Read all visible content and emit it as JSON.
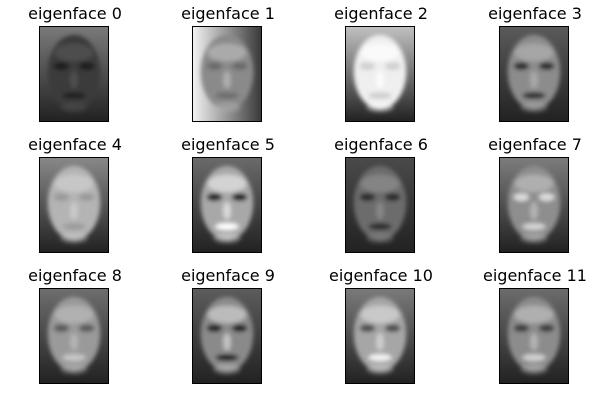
{
  "figure": {
    "panels": [
      {
        "title": "eigenface 0",
        "bg": "#7a7a7a",
        "face": "#3a3a3a",
        "eyes": "#1e1e1e",
        "mouth": "#202020",
        "hi": "#555555",
        "lighting": "dark"
      },
      {
        "title": "eigenface 1",
        "bg": "#9e9e9e",
        "face": "#8a8a8a",
        "eyes": "#6a6a6a",
        "mouth": "#6e6e6e",
        "hi": "#b8b8b8",
        "lighting": "gradient-left-dark"
      },
      {
        "title": "eigenface 2",
        "bg": "#c0c0c0",
        "face": "#efefef",
        "eyes": "#d0d0d0",
        "mouth": "#cfcfcf",
        "hi": "#ffffff",
        "lighting": "bright"
      },
      {
        "title": "eigenface 3",
        "bg": "#5a5a5a",
        "face": "#8c8c8c",
        "eyes": "#2c2c2c",
        "mouth": "#2e2e2e",
        "hi": "#b0b0b0",
        "lighting": "normal"
      },
      {
        "title": "eigenface 4",
        "bg": "#888888",
        "face": "#b4b4b4",
        "eyes": "#9a9a9a",
        "mouth": "#9c9c9c",
        "hi": "#cfcfcf",
        "lighting": "soft"
      },
      {
        "title": "eigenface 5",
        "bg": "#6a6a6a",
        "face": "#a8a8a8",
        "eyes": "#1a1a1a",
        "mouth": "#ffffff",
        "hi": "#e6e6e6",
        "lighting": "contrast"
      },
      {
        "title": "eigenface 6",
        "bg": "#4a4a4a",
        "face": "#6c6c6c",
        "eyes": "#2a2a2a",
        "mouth": "#2a2a2a",
        "hi": "#8e8e8e",
        "lighting": "dark"
      },
      {
        "title": "eigenface 7",
        "bg": "#7c7c7c",
        "face": "#8e8e8e",
        "eyes": "#dcdcdc",
        "mouth": "#d4d4d4",
        "hi": "#bdbdbd",
        "lighting": "inverse"
      },
      {
        "title": "eigenface 8",
        "bg": "#6e6e6e",
        "face": "#9a9a9a",
        "eyes": "#5a5a5a",
        "mouth": "#c8c8c8",
        "hi": "#bababa",
        "lighting": "normal"
      },
      {
        "title": "eigenface 9",
        "bg": "#5c5c5c",
        "face": "#8a8a8a",
        "eyes": "#222222",
        "mouth": "#1e1e1e",
        "hi": "#d0d0d0",
        "lighting": "contrast"
      },
      {
        "title": "eigenface 10",
        "bg": "#7a7a7a",
        "face": "#a6a6a6",
        "eyes": "#4e4e4e",
        "mouth": "#f4f4f4",
        "hi": "#d8d8d8",
        "lighting": "contrast"
      },
      {
        "title": "eigenface 11",
        "bg": "#6c6c6c",
        "face": "#8c8c8c",
        "eyes": "#3c3c3c",
        "mouth": "#d2d2d2",
        "hi": "#bebebe",
        "lighting": "inverse"
      }
    ]
  }
}
